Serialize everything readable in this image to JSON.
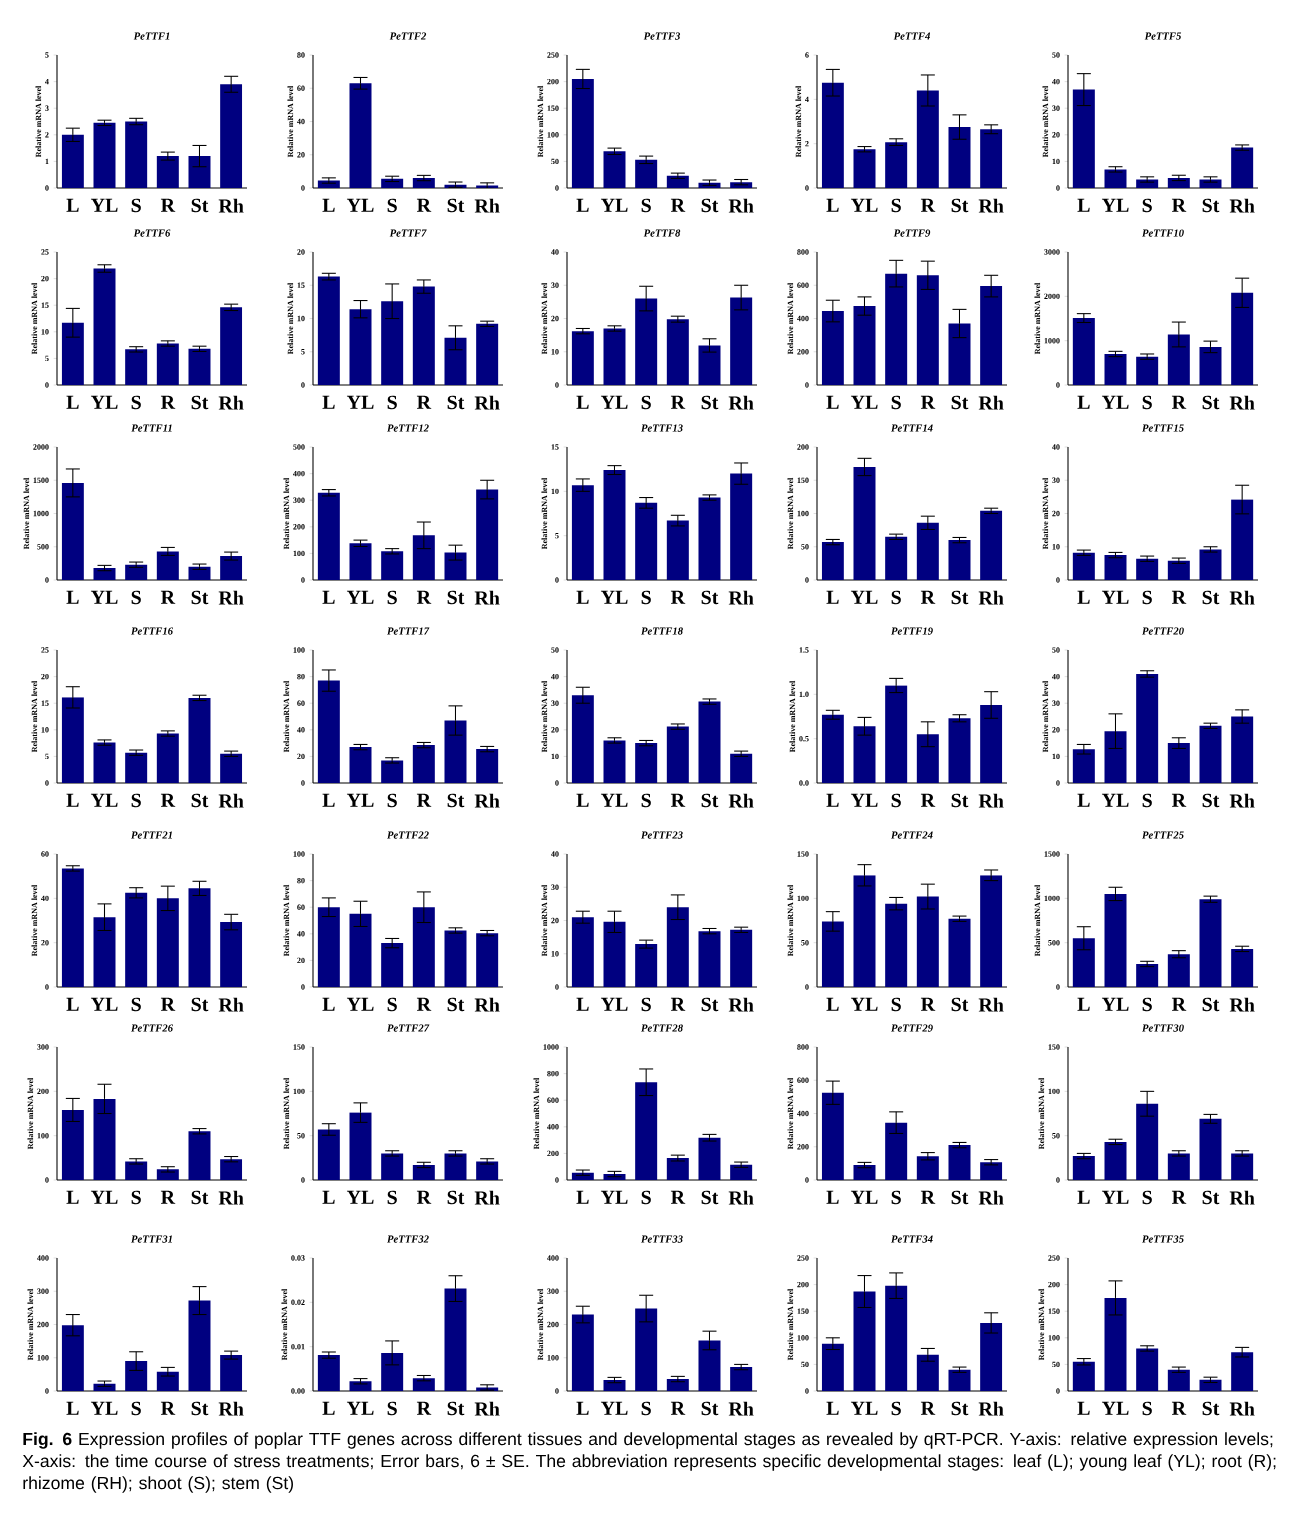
{
  "chart_data": [
    {
      "type": "bar",
      "title": "PeTTF1",
      "ylabel": "Relative mRNA level",
      "categories": [
        "L",
        "YL",
        "S",
        "R",
        "St",
        "Rh"
      ],
      "color": "#000080",
      "values": [
        2.0,
        2.45,
        2.5,
        1.2,
        1.2,
        3.9
      ],
      "errors": [
        0.25,
        0.1,
        0.12,
        0.15,
        0.4,
        0.3
      ],
      "ylim": [
        0,
        5
      ],
      "yticks": [
        0,
        1,
        2,
        3,
        4,
        5
      ]
    },
    {
      "type": "bar",
      "title": "PeTTF2",
      "ylabel": "Relative mRNA level",
      "categories": [
        "L",
        "YL",
        "S",
        "R",
        "St",
        "Rh"
      ],
      "color": "#000080",
      "values": [
        4.5,
        63,
        5.5,
        6,
        2,
        1.5
      ],
      "errors": [
        1.6,
        3.5,
        1.6,
        1.6,
        1.6,
        1.6
      ],
      "ylim": [
        0,
        80
      ],
      "yticks": [
        0,
        20,
        40,
        60,
        80
      ]
    },
    {
      "type": "bar",
      "title": "PeTTF3",
      "ylabel": "Relative mRNA level",
      "categories": [
        "L",
        "YL",
        "S",
        "R",
        "St",
        "Rh"
      ],
      "color": "#000080",
      "values": [
        205,
        69,
        53,
        23,
        10,
        11
      ],
      "errors": [
        18,
        6,
        7,
        5,
        5,
        5
      ],
      "ylim": [
        0,
        250
      ],
      "yticks": [
        0,
        50,
        100,
        150,
        200,
        250
      ]
    },
    {
      "type": "bar",
      "title": "PeTTF4",
      "ylabel": "Relative mRNA level",
      "categories": [
        "L",
        "YL",
        "S",
        "R",
        "St",
        "Rh"
      ],
      "color": "#000080",
      "values": [
        4.75,
        1.75,
        2.07,
        4.4,
        2.75,
        2.65
      ],
      "errors": [
        0.6,
        0.12,
        0.15,
        0.7,
        0.55,
        0.2
      ],
      "ylim": [
        0,
        6
      ],
      "yticks": [
        0,
        2,
        4,
        6
      ]
    },
    {
      "type": "bar",
      "title": "PeTTF5",
      "ylabel": "Relative mRNA level",
      "categories": [
        "L",
        "YL",
        "S",
        "R",
        "St",
        "Rh"
      ],
      "color": "#000080",
      "values": [
        37,
        7,
        3.2,
        3.8,
        3.2,
        15.2
      ],
      "errors": [
        6,
        1,
        1,
        1,
        1,
        1
      ],
      "ylim": [
        0,
        50
      ],
      "yticks": [
        0,
        10,
        20,
        30,
        40,
        50
      ]
    },
    {
      "type": "bar",
      "title": "PeTTF6",
      "ylabel": "Relative mRNA level",
      "categories": [
        "L",
        "YL",
        "S",
        "R",
        "St",
        "Rh"
      ],
      "color": "#000080",
      "values": [
        11.7,
        21.9,
        6.7,
        7.8,
        6.8,
        14.6
      ],
      "errors": [
        2.7,
        0.7,
        0.5,
        0.5,
        0.5,
        0.6
      ],
      "ylim": [
        0,
        25
      ],
      "yticks": [
        0,
        5,
        10,
        15,
        20,
        25
      ]
    },
    {
      "type": "bar",
      "title": "PeTTF7",
      "ylabel": "Relative mRNA level",
      "categories": [
        "L",
        "YL",
        "S",
        "R",
        "St",
        "Rh"
      ],
      "color": "#000080",
      "values": [
        16.3,
        11.4,
        12.6,
        14.8,
        7.1,
        9.2
      ],
      "errors": [
        0.5,
        1.3,
        2.6,
        1.0,
        1.8,
        0.4
      ],
      "ylim": [
        0,
        20
      ],
      "yticks": [
        0,
        5,
        10,
        15,
        20
      ]
    },
    {
      "type": "bar",
      "title": "PeTTF8",
      "ylabel": "Relative mRNA level",
      "categories": [
        "L",
        "YL",
        "S",
        "R",
        "St",
        "Rh"
      ],
      "color": "#000080",
      "values": [
        16.2,
        17,
        26,
        19.8,
        11.9,
        26.3
      ],
      "errors": [
        0.8,
        0.8,
        3.7,
        0.9,
        2,
        3.7
      ],
      "ylim": [
        0,
        40
      ],
      "yticks": [
        0,
        10,
        20,
        30,
        40
      ]
    },
    {
      "type": "bar",
      "title": "PeTTF9",
      "ylabel": "Relative mRNA level",
      "categories": [
        "L",
        "YL",
        "S",
        "R",
        "St",
        "Rh"
      ],
      "color": "#000080",
      "values": [
        445,
        475,
        670,
        660,
        370,
        595
      ],
      "errors": [
        65,
        55,
        80,
        85,
        85,
        65
      ],
      "ylim": [
        0,
        800
      ],
      "yticks": [
        0,
        200,
        400,
        600,
        800
      ]
    },
    {
      "type": "bar",
      "title": "PeTTF10",
      "ylabel": "Relative mRNA level",
      "categories": [
        "L",
        "YL",
        "S",
        "R",
        "St",
        "Rh"
      ],
      "color": "#000080",
      "values": [
        1510,
        700,
        640,
        1140,
        860,
        2080
      ],
      "errors": [
        100,
        60,
        60,
        280,
        130,
        330
      ],
      "ylim": [
        0,
        3000
      ],
      "yticks": [
        0,
        1000,
        2000,
        3000
      ]
    },
    {
      "type": "bar",
      "title": "PeTTF11",
      "ylabel": "Relative mRNA level",
      "categories": [
        "L",
        "YL",
        "S",
        "R",
        "St",
        "Rh"
      ],
      "color": "#000080",
      "values": [
        1460,
        180,
        230,
        430,
        200,
        360
      ],
      "errors": [
        210,
        40,
        40,
        60,
        40,
        60
      ],
      "ylim": [
        0,
        2000
      ],
      "yticks": [
        0,
        500,
        1000,
        1500,
        2000
      ]
    },
    {
      "type": "bar",
      "title": "PeTTF12",
      "ylabel": "Relative mRNA level",
      "categories": [
        "L",
        "YL",
        "S",
        "R",
        "St",
        "Rh"
      ],
      "color": "#000080",
      "values": [
        328,
        138,
        108,
        168,
        103,
        340
      ],
      "errors": [
        12,
        12,
        10,
        50,
        28,
        35
      ],
      "ylim": [
        0,
        500
      ],
      "yticks": [
        0,
        100,
        200,
        300,
        400,
        500
      ]
    },
    {
      "type": "bar",
      "title": "PeTTF13",
      "ylabel": "Relative mRNA level",
      "categories": [
        "L",
        "YL",
        "S",
        "R",
        "St",
        "Rh"
      ],
      "color": "#000080",
      "values": [
        10.7,
        12.4,
        8.7,
        6.7,
        9.3,
        12
      ],
      "errors": [
        0.7,
        0.5,
        0.6,
        0.6,
        0.3,
        1.2
      ],
      "ylim": [
        0,
        15
      ],
      "yticks": [
        0,
        5,
        10,
        15
      ]
    },
    {
      "type": "bar",
      "title": "PeTTF14",
      "ylabel": "Relative mRNA level",
      "categories": [
        "L",
        "YL",
        "S",
        "R",
        "St",
        "Rh"
      ],
      "color": "#000080",
      "values": [
        57,
        170,
        65,
        86,
        60,
        104
      ],
      "errors": [
        4,
        13,
        4,
        10,
        4,
        4
      ],
      "ylim": [
        0,
        200
      ],
      "yticks": [
        0,
        50,
        100,
        150,
        200
      ]
    },
    {
      "type": "bar",
      "title": "PeTTF15",
      "ylabel": "Relative mRNA level",
      "categories": [
        "L",
        "YL",
        "S",
        "R",
        "St",
        "Rh"
      ],
      "color": "#000080",
      "values": [
        8.2,
        7.5,
        6.4,
        5.8,
        9.2,
        24.2
      ],
      "errors": [
        0.8,
        0.8,
        0.8,
        0.8,
        0.8,
        4.3
      ],
      "ylim": [
        0,
        40
      ],
      "yticks": [
        0,
        10,
        20,
        30,
        40
      ]
    },
    {
      "type": "bar",
      "title": "PeTTF16",
      "ylabel": "Relative mRNA level",
      "categories": [
        "L",
        "YL",
        "S",
        "R",
        "St",
        "Rh"
      ],
      "color": "#000080",
      "values": [
        16.1,
        7.6,
        5.7,
        9.3,
        16,
        5.5
      ],
      "errors": [
        2,
        0.5,
        0.5,
        0.5,
        0.5,
        0.5
      ],
      "ylim": [
        0,
        25
      ],
      "yticks": [
        0,
        5,
        10,
        15,
        20,
        25
      ]
    },
    {
      "type": "bar",
      "title": "PeTTF17",
      "ylabel": "Relative mRNA level",
      "categories": [
        "L",
        "YL",
        "S",
        "R",
        "St",
        "Rh"
      ],
      "color": "#000080",
      "values": [
        77,
        27,
        17,
        28.5,
        47,
        25.5
      ],
      "errors": [
        8,
        2,
        2,
        2,
        11,
        2
      ],
      "ylim": [
        0,
        100
      ],
      "yticks": [
        0,
        20,
        40,
        60,
        80,
        100
      ]
    },
    {
      "type": "bar",
      "title": "PeTTF18",
      "ylabel": "Relative mRNA level",
      "categories": [
        "L",
        "YL",
        "S",
        "R",
        "St",
        "Rh"
      ],
      "color": "#000080",
      "values": [
        33,
        16,
        15,
        21.2,
        30.6,
        11
      ],
      "errors": [
        3,
        1,
        1,
        1,
        1,
        1
      ],
      "ylim": [
        0,
        50
      ],
      "yticks": [
        0,
        10,
        20,
        30,
        40,
        50
      ]
    },
    {
      "type": "bar",
      "title": "PeTTF19",
      "ylabel": "Relative mRNA level",
      "categories": [
        "L",
        "YL",
        "S",
        "R",
        "St",
        "Rh"
      ],
      "color": "#000080",
      "values": [
        0.77,
        0.64,
        1.1,
        0.55,
        0.73,
        0.88
      ],
      "errors": [
        0.05,
        0.1,
        0.08,
        0.14,
        0.04,
        0.15
      ],
      "ylim": [
        0,
        1.5
      ],
      "yticks": [
        {
          "value": 0,
          "label": "0.0"
        },
        {
          "value": 0.5,
          "label": "0.5"
        },
        {
          "value": 1,
          "label": "1.0"
        },
        {
          "value": 1.5,
          "label": "1.5"
        }
      ]
    },
    {
      "type": "bar",
      "title": "PeTTF20",
      "ylabel": "Relative mRNA level",
      "categories": [
        "L",
        "YL",
        "S",
        "R",
        "St",
        "Rh"
      ],
      "color": "#000080",
      "values": [
        12.7,
        19.5,
        41,
        15,
        21.5,
        25
      ],
      "errors": [
        1.8,
        6.5,
        1.2,
        2,
        1,
        2.5
      ],
      "ylim": [
        0,
        50
      ],
      "yticks": [
        0,
        10,
        20,
        30,
        40,
        50
      ]
    },
    {
      "type": "bar",
      "title": "PeTTF21",
      "ylabel": "Relative mRNA level",
      "categories": [
        "L",
        "YL",
        "S",
        "R",
        "St",
        "Rh"
      ],
      "color": "#000080",
      "values": [
        53.5,
        31.5,
        42.5,
        40,
        44.5,
        29.3
      ],
      "errors": [
        1.2,
        6,
        2.3,
        5.5,
        3.2,
        3.5
      ],
      "ylim": [
        0,
        60
      ],
      "yticks": [
        0,
        20,
        40,
        60
      ]
    },
    {
      "type": "bar",
      "title": "PeTTF22",
      "ylabel": "Relative mRNA level",
      "categories": [
        "L",
        "YL",
        "S",
        "R",
        "St",
        "Rh"
      ],
      "color": "#000080",
      "values": [
        60,
        55,
        33,
        60,
        42.5,
        40.5
      ],
      "errors": [
        7,
        9.5,
        3.5,
        11.5,
        2,
        2
      ],
      "ylim": [
        0,
        100
      ],
      "yticks": [
        0,
        20,
        40,
        60,
        80,
        100
      ]
    },
    {
      "type": "bar",
      "title": "PeTTF23",
      "ylabel": "Relative mRNA level",
      "categories": [
        "L",
        "YL",
        "S",
        "R",
        "St",
        "Rh"
      ],
      "color": "#000080",
      "values": [
        21,
        19.6,
        12.9,
        24,
        16.8,
        17.2
      ],
      "errors": [
        1.8,
        3.2,
        1.2,
        3.7,
        0.8,
        0.8
      ],
      "ylim": [
        0,
        40
      ],
      "yticks": [
        0,
        10,
        20,
        30,
        40
      ]
    },
    {
      "type": "bar",
      "title": "PeTTF24",
      "ylabel": "Relative mRNA level",
      "categories": [
        "L",
        "YL",
        "S",
        "R",
        "St",
        "Rh"
      ],
      "color": "#000080",
      "values": [
        74,
        126,
        94,
        102,
        77,
        126
      ],
      "errors": [
        11,
        12,
        7,
        14,
        3,
        6
      ],
      "ylim": [
        0,
        150
      ],
      "yticks": [
        0,
        50,
        100,
        150
      ]
    },
    {
      "type": "bar",
      "title": "PeTTF25",
      "ylabel": "Relative mRNA level",
      "categories": [
        "L",
        "YL",
        "S",
        "R",
        "St",
        "Rh"
      ],
      "color": "#000080",
      "values": [
        550,
        1050,
        260,
        370,
        990,
        430
      ],
      "errors": [
        130,
        75,
        30,
        40,
        35,
        30
      ],
      "ylim": [
        0,
        1500
      ],
      "yticks": [
        0,
        500,
        1000,
        1500
      ]
    },
    {
      "type": "bar",
      "title": "PeTTF26",
      "ylabel": "Relative mRNA level",
      "categories": [
        "L",
        "YL",
        "S",
        "R",
        "St",
        "Rh"
      ],
      "color": "#000080",
      "values": [
        158,
        183,
        42,
        24,
        110,
        47
      ],
      "errors": [
        26,
        33,
        6,
        6,
        6,
        6
      ],
      "ylim": [
        0,
        300
      ],
      "yticks": [
        0,
        100,
        200,
        300
      ]
    },
    {
      "type": "bar",
      "title": "PeTTF27",
      "ylabel": "Relative mRNA level",
      "categories": [
        "L",
        "YL",
        "S",
        "R",
        "St",
        "Rh"
      ],
      "color": "#000080",
      "values": [
        57,
        76,
        30,
        17,
        30,
        21
      ],
      "errors": [
        6.5,
        11,
        3,
        3,
        3,
        3
      ],
      "ylim": [
        0,
        150
      ],
      "yticks": [
        0,
        50,
        100,
        150
      ]
    },
    {
      "type": "bar",
      "title": "PeTTF28",
      "ylabel": "Relative mRNA level",
      "categories": [
        "L",
        "YL",
        "S",
        "R",
        "St",
        "Rh"
      ],
      "color": "#000080",
      "values": [
        55,
        45,
        735,
        165,
        318,
        115
      ],
      "errors": [
        20,
        20,
        100,
        22,
        25,
        20
      ],
      "ylim": [
        0,
        1000
      ],
      "yticks": [
        0,
        200,
        400,
        600,
        800,
        1000
      ]
    },
    {
      "type": "bar",
      "title": "PeTTF29",
      "ylabel": "Relative mRNA level",
      "categories": [
        "L",
        "YL",
        "S",
        "R",
        "St",
        "Rh"
      ],
      "color": "#000080",
      "values": [
        525,
        90,
        345,
        143,
        210,
        107
      ],
      "errors": [
        70,
        16,
        65,
        22,
        16,
        16
      ],
      "ylim": [
        0,
        800
      ],
      "yticks": [
        0,
        200,
        400,
        600,
        800
      ]
    },
    {
      "type": "bar",
      "title": "PeTTF30",
      "ylabel": "Relative mRNA level",
      "categories": [
        "L",
        "YL",
        "S",
        "R",
        "St",
        "Rh"
      ],
      "color": "#000080",
      "values": [
        27,
        43,
        86,
        30,
        69,
        30
      ],
      "errors": [
        3,
        3,
        14,
        3,
        5,
        3
      ],
      "ylim": [
        0,
        150
      ],
      "yticks": [
        0,
        50,
        100,
        150
      ]
    },
    {
      "type": "bar",
      "title": "PeTTF31",
      "ylabel": "Relative mRNA level",
      "categories": [
        "L",
        "YL",
        "S",
        "R",
        "St",
        "Rh"
      ],
      "color": "#000080",
      "values": [
        198,
        22,
        90,
        58,
        272,
        108
      ],
      "errors": [
        32,
        8,
        28,
        13,
        42,
        12
      ],
      "ylim": [
        0,
        400
      ],
      "yticks": [
        0,
        100,
        200,
        300,
        400
      ]
    },
    {
      "type": "bar",
      "title": "PeTTF32",
      "ylabel": "Relative mRNA level",
      "categories": [
        "L",
        "YL",
        "S",
        "R",
        "St",
        "Rh"
      ],
      "color": "#000080",
      "values": [
        0.0081,
        0.0022,
        0.0086,
        0.0029,
        0.0231,
        0.0008
      ],
      "errors": [
        0.0007,
        0.0006,
        0.0027,
        0.0006,
        0.0029,
        0.0006
      ],
      "ylim": [
        0,
        0.03
      ],
      "yticks": [
        {
          "value": 0,
          "label": "0.00"
        },
        {
          "value": 0.01,
          "label": "0.01"
        },
        {
          "value": 0.02,
          "label": "0.02"
        },
        {
          "value": 0.03,
          "label": "0.03"
        }
      ]
    },
    {
      "type": "bar",
      "title": "PeTTF33",
      "ylabel": "Relative mRNA level",
      "categories": [
        "L",
        "YL",
        "S",
        "R",
        "St",
        "Rh"
      ],
      "color": "#000080",
      "values": [
        230,
        33,
        248,
        36,
        152,
        72
      ],
      "errors": [
        25,
        8,
        40,
        8,
        28,
        8
      ],
      "ylim": [
        0,
        400
      ],
      "yticks": [
        0,
        100,
        200,
        300,
        400
      ]
    },
    {
      "type": "bar",
      "title": "PeTTF34",
      "ylabel": "Relative mRNA level",
      "categories": [
        "L",
        "YL",
        "S",
        "R",
        "St",
        "Rh"
      ],
      "color": "#000080",
      "values": [
        89,
        187,
        198,
        68,
        40,
        128
      ],
      "errors": [
        11,
        30,
        24,
        12,
        5,
        19
      ],
      "ylim": [
        0,
        250
      ],
      "yticks": [
        0,
        50,
        100,
        150,
        200,
        250
      ]
    },
    {
      "type": "bar",
      "title": "PeTTF35",
      "ylabel": "Relative mRNA level",
      "categories": [
        "L",
        "YL",
        "S",
        "R",
        "St",
        "Rh"
      ],
      "color": "#000080",
      "values": [
        55,
        175,
        80,
        40,
        21,
        73
      ],
      "errors": [
        6,
        32,
        5,
        5,
        5,
        9
      ],
      "ylim": [
        0,
        250
      ],
      "yticks": [
        0,
        50,
        100,
        150,
        200,
        250
      ]
    },
    {
      "type": "other",
      "annotations": [
        "**Fig. 6** Expression profiles of poplar TTF genes across different tissues and developmental stages as revealed by qRT-PCR. Y-axis: relative expression levels; X-axis: the time course of stress treatments; Error bars, 6 ± SE. The abbreviation represents specific developmental stages: leaf (L); young leaf (YL); root (R); rhizome (RH); shoot (S); stem (St)"
      ]
    }
  ]
}
